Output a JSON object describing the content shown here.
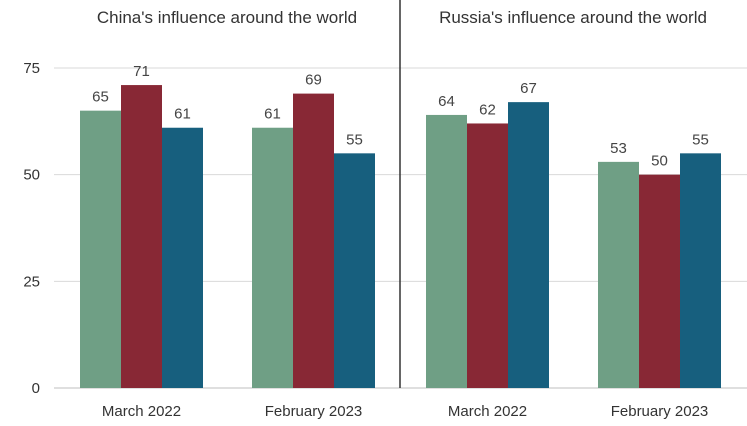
{
  "chart_data": {
    "type": "bar",
    "ylim": [
      0,
      75
    ],
    "yticks": [
      0,
      25,
      50,
      75
    ],
    "grid": true,
    "colors": [
      "#6f9f85",
      "#882835",
      "#175f7e"
    ],
    "panels": [
      {
        "title": "China's influence around the world",
        "categories": [
          "March 2022",
          "February 2023"
        ],
        "series": [
          {
            "values": [
              65,
              61
            ],
            "color": "#6f9f85"
          },
          {
            "values": [
              71,
              69
            ],
            "color": "#882835"
          },
          {
            "values": [
              61,
              55
            ],
            "color": "#175f7e"
          }
        ]
      },
      {
        "title": "Russia's influence around the world",
        "categories": [
          "March 2022",
          "February 2023"
        ],
        "series": [
          {
            "values": [
              64,
              53
            ],
            "color": "#6f9f85"
          },
          {
            "values": [
              62,
              50
            ],
            "color": "#882835"
          },
          {
            "values": [
              67,
              55
            ],
            "color": "#175f7e"
          }
        ]
      }
    ]
  }
}
